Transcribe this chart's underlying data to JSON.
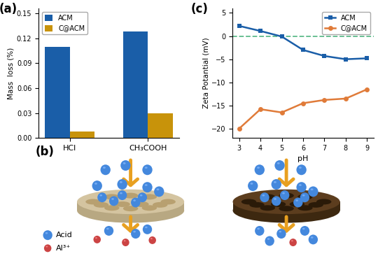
{
  "bar_categories": [
    "HCl",
    "CH₃COOH"
  ],
  "acm_values": [
    0.11,
    0.128
  ],
  "cacm_values": [
    0.008,
    0.03
  ],
  "bar_color_acm": "#1A5EA8",
  "bar_color_cacm": "#C8930A",
  "ylabel_bar": "Mass  loss (%)",
  "ylim_bar": [
    0.0,
    0.156
  ],
  "yticks_bar": [
    0.0,
    0.03,
    0.06,
    0.09,
    0.12,
    0.15
  ],
  "label_a": "(a)",
  "label_b": "(b)",
  "label_c": "(c)",
  "ph_values": [
    3,
    4,
    5,
    6,
    7,
    8,
    9
  ],
  "acm_zeta": [
    2.2,
    1.1,
    -0.1,
    -3.0,
    -4.3,
    -5.0,
    -4.8
  ],
  "cacm_zeta": [
    -20.0,
    -15.8,
    -16.5,
    -14.5,
    -13.8,
    -13.5,
    -11.5
  ],
  "line_color_acm": "#1A5EA8",
  "line_color_cacm": "#E07B39",
  "ylabel_line": "Zeta Potantial (mV)",
  "xlabel_line": "pH",
  "ylim_line": [
    -22,
    6
  ],
  "yticks_line": [
    -20,
    -15,
    -10,
    -5,
    0,
    5
  ],
  "background_color": "#ffffff",
  "dashed_line_color": "#5DBB8A",
  "mem_left_color": "#D4C4A0",
  "mem_right_color": "#5C3D1E",
  "mem_left_shadow": "#B8A882",
  "mem_right_shadow": "#3D2810",
  "hole_color_left": "#B8A070",
  "hole_color_right": "#2A1A08",
  "sphere_acid_color": "#4488DD",
  "sphere_acid_shine": "#88BBFF",
  "sphere_al_color": "#CC4444",
  "arrow_color": "#E8A020"
}
